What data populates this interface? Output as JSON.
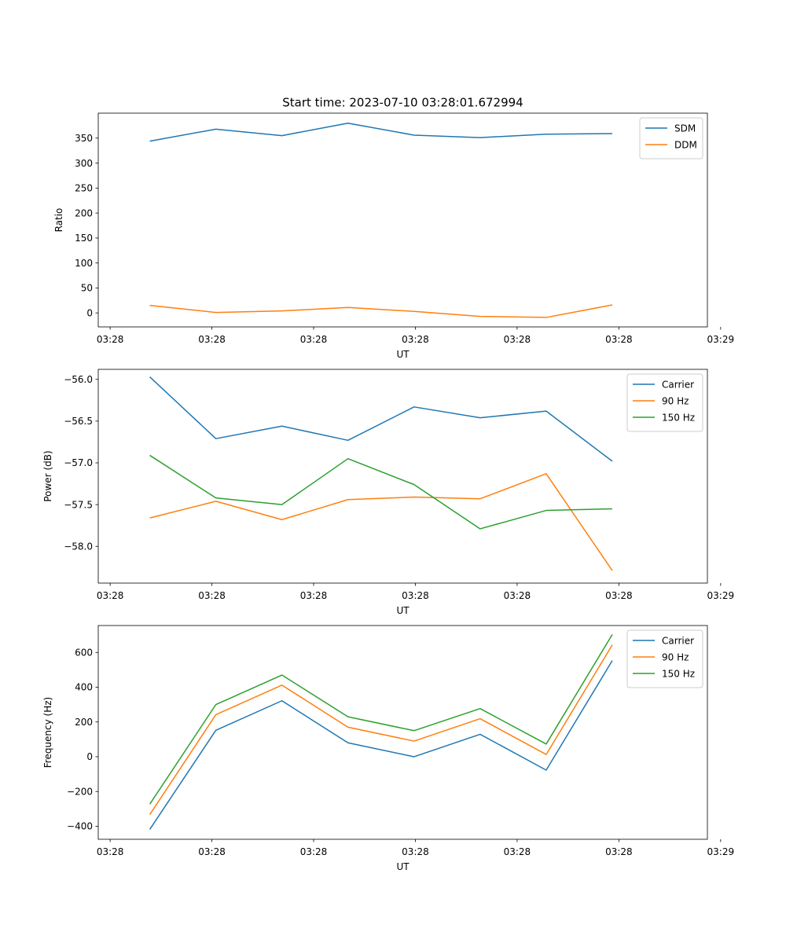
{
  "title": "Start time: 2023-07-10 03:28:01.672994",
  "colors": {
    "blue": "#1f77b4",
    "orange": "#ff7f0e",
    "green": "#2ca02c"
  },
  "chart_data": [
    {
      "type": "line",
      "title": "Start time: 2023-07-10 03:28:01.672994",
      "xlabel": "UT",
      "ylabel": "Ratio",
      "x": [
        1,
        2,
        3,
        4,
        5,
        6,
        7,
        8
      ],
      "xlim": [
        0.22,
        9.44
      ],
      "xticks": [
        0.4,
        1.94,
        3.48,
        5.02,
        6.56,
        8.1,
        9.64
      ],
      "xtick_labels": [
        "03:28",
        "03:28",
        "03:28",
        "03:28",
        "03:28",
        "03:28",
        "03:29"
      ],
      "ylim": [
        -28,
        400
      ],
      "yticks": [
        0,
        50,
        100,
        150,
        200,
        250,
        300,
        350
      ],
      "ytick_labels": [
        "0",
        "50",
        "100",
        "150",
        "200",
        "250",
        "300",
        "350"
      ],
      "legend_position": "top-right",
      "series": [
        {
          "name": "SDM",
          "color": "#1f77b4",
          "values": [
            344,
            368,
            355,
            380,
            356,
            351,
            358,
            359
          ]
        },
        {
          "name": "DDM",
          "color": "#ff7f0e",
          "values": [
            15,
            1,
            4,
            11,
            3,
            -7,
            -9,
            16
          ]
        }
      ]
    },
    {
      "type": "line",
      "xlabel": "UT",
      "ylabel": "Power (dB)",
      "x": [
        1,
        2,
        3,
        4,
        5,
        6,
        7,
        8
      ],
      "xlim": [
        0.22,
        9.44
      ],
      "xticks": [
        0.4,
        1.94,
        3.48,
        5.02,
        6.56,
        8.1,
        9.64
      ],
      "xtick_labels": [
        "03:28",
        "03:28",
        "03:28",
        "03:28",
        "03:28",
        "03:28",
        "03:29"
      ],
      "ylim": [
        -58.44,
        -55.88
      ],
      "yticks": [
        -58.0,
        -57.5,
        -57.0,
        -56.5,
        -56.0
      ],
      "ytick_labels": [
        "−58.0",
        "−57.5",
        "−57.0",
        "−56.5",
        "−56.0"
      ],
      "legend_position": "top-right",
      "series": [
        {
          "name": "Carrier",
          "color": "#1f77b4",
          "values": [
            -55.97,
            -56.71,
            -56.56,
            -56.73,
            -56.33,
            -56.46,
            -56.38,
            -56.98
          ]
        },
        {
          "name": "90 Hz",
          "color": "#ff7f0e",
          "values": [
            -57.66,
            -57.46,
            -57.68,
            -57.44,
            -57.41,
            -57.43,
            -57.13,
            -58.29
          ]
        },
        {
          "name": "150 Hz",
          "color": "#2ca02c",
          "values": [
            -56.91,
            -57.42,
            -57.5,
            -56.95,
            -57.26,
            -57.79,
            -57.57,
            -57.55
          ]
        }
      ]
    },
    {
      "type": "line",
      "xlabel": "UT",
      "ylabel": "Frequency (Hz)",
      "x": [
        1,
        2,
        3,
        4,
        5,
        6,
        7,
        8
      ],
      "xlim": [
        0.22,
        9.44
      ],
      "xticks": [
        0.4,
        1.94,
        3.48,
        5.02,
        6.56,
        8.1,
        9.64
      ],
      "xtick_labels": [
        "03:28",
        "03:28",
        "03:28",
        "03:28",
        "03:28",
        "03:28",
        "03:29"
      ],
      "ylim": [
        -475,
        755
      ],
      "yticks": [
        -400,
        -200,
        0,
        200,
        400,
        600
      ],
      "ytick_labels": [
        "−400",
        "−200",
        "0",
        "200",
        "400",
        "600"
      ],
      "legend_position": "top-right",
      "series": [
        {
          "name": "Carrier",
          "color": "#1f77b4",
          "values": [
            -418,
            152,
            322,
            80,
            0,
            129,
            -77,
            553
          ]
        },
        {
          "name": "90 Hz",
          "color": "#ff7f0e",
          "values": [
            -333,
            242,
            412,
            170,
            90,
            219,
            13,
            643
          ]
        },
        {
          "name": "150 Hz",
          "color": "#2ca02c",
          "values": [
            -273,
            300,
            470,
            230,
            150,
            277,
            73,
            703
          ]
        }
      ]
    }
  ]
}
